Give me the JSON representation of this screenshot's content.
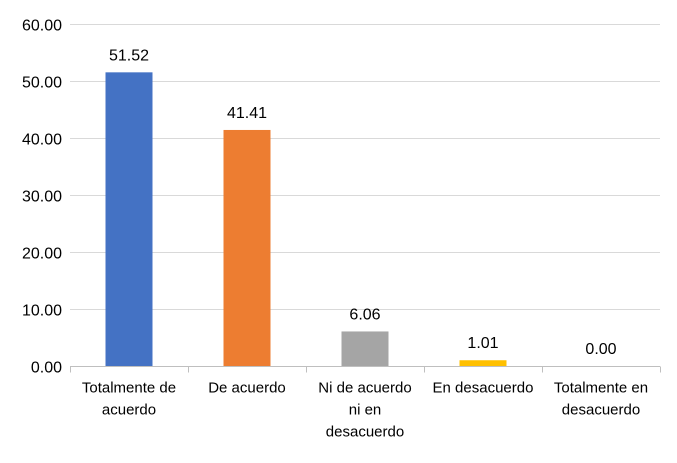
{
  "chart_data": {
    "type": "bar",
    "title": "",
    "xlabel": "",
    "ylabel": "",
    "categories": [
      [
        "Totalmente de",
        "acuerdo"
      ],
      [
        "De acuerdo"
      ],
      [
        "Ni de acuerdo",
        "ni en",
        "desacuerdo"
      ],
      [
        "En desacuerdo"
      ],
      [
        "Totalmente en",
        "desacuerdo"
      ]
    ],
    "values": [
      51.52,
      41.41,
      6.06,
      1.01,
      0.0
    ],
    "value_labels": [
      "51.52",
      "41.41",
      "6.06",
      "1.01",
      "0.00"
    ],
    "colors": [
      "#4472C4",
      "#ED7D31",
      "#A5A5A5",
      "#FFC000",
      "#5B9BD5"
    ],
    "ylim": [
      0,
      60
    ],
    "yticks": [
      0,
      10,
      20,
      30,
      40,
      50,
      60
    ],
    "ytick_labels": [
      "0.00",
      "10.00",
      "20.00",
      "30.00",
      "40.00",
      "50.00",
      "60.00"
    ],
    "grid": true,
    "legend": "none"
  }
}
